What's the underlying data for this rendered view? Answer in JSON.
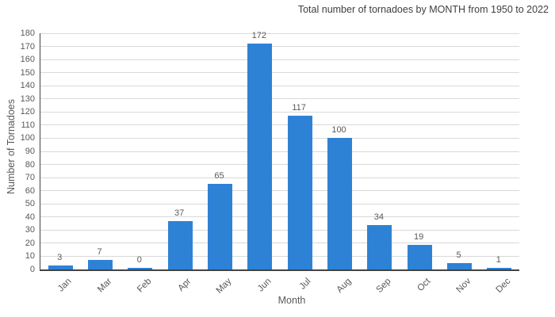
{
  "chart_data": {
    "type": "bar",
    "title": "Total number of tornadoes by MONTH from 1950 to 2022",
    "categories": [
      "Jan",
      "Mar",
      "Feb",
      "Apr",
      "May",
      "Jun",
      "Jul",
      "Aug",
      "Sep",
      "Oct",
      "Nov",
      "Dec"
    ],
    "values": [
      3,
      7,
      0,
      37,
      65,
      172,
      117,
      100,
      34,
      19,
      5,
      1
    ],
    "xlabel": "Month",
    "ylabel": "Number of Tornadoes",
    "ylim": [
      0,
      180
    ],
    "ytick_step": 10,
    "grid": true,
    "legend_position": "none",
    "value_labels_shown": true,
    "colors": {
      "bar": "#2e82d6",
      "grid": "#d9d9d9",
      "axis": "#424242",
      "tick_text": "#595959",
      "title_text": "#3f3f3f"
    }
  }
}
